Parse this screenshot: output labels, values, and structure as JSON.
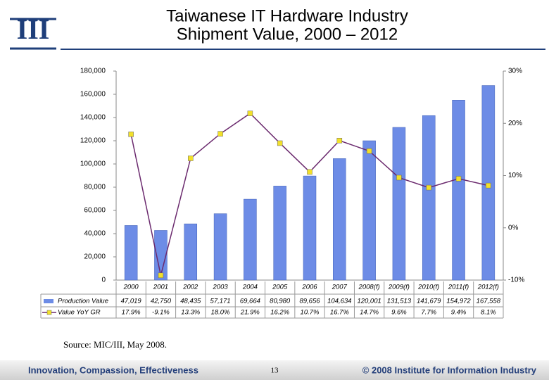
{
  "logo": "III",
  "chart_data": {
    "type": "bar-line",
    "title": [
      "Taiwanese IT Hardware Industry",
      "Shipment Value, 2000 – 2012"
    ],
    "categories": [
      "2000",
      "2001",
      "2002",
      "2003",
      "2004",
      "2005",
      "2006",
      "2007",
      "2008(f)",
      "2009(f)",
      "2010(f)",
      "2011(f)",
      "2012(f)"
    ],
    "series": [
      {
        "name": "Production Value",
        "type": "bar",
        "color": "#6d8ce6",
        "values": [
          47019,
          42750,
          48435,
          57171,
          69664,
          80980,
          89656,
          104634,
          120001,
          131513,
          141679,
          154972,
          167558
        ],
        "value_labels": [
          "47,019",
          "42,750",
          "48,435",
          "57,171",
          "69,664",
          "80,980",
          "89,656",
          "104,634",
          "120,001",
          "131,513",
          "141,679",
          "154,972",
          "167,558"
        ]
      },
      {
        "name": "Value YoY GR",
        "type": "line",
        "axis": "y2",
        "color": "#6b2a6e",
        "marker_color": "#f2e02a",
        "values": [
          17.9,
          -9.1,
          13.3,
          18.0,
          21.9,
          16.2,
          10.7,
          16.7,
          14.7,
          9.6,
          7.7,
          9.4,
          8.1
        ],
        "value_labels": [
          "17.9%",
          "-9.1%",
          "13.3%",
          "18.0%",
          "21.9%",
          "16.2%",
          "10.7%",
          "16.7%",
          "14.7%",
          "9.6%",
          "7.7%",
          "9.4%",
          "8.1%"
        ]
      }
    ],
    "ylim": [
      0,
      180000
    ],
    "yticks": [
      0,
      {
        "value": 20000,
        "label": "20,000"
      },
      {
        "value": 40000,
        "label": "40,000"
      },
      {
        "value": 60000,
        "label": "60,000"
      },
      {
        "value": 80000,
        "label": "80,000"
      },
      {
        "value": 100000,
        "label": "100,000"
      },
      {
        "value": 120000,
        "label": "120,000"
      },
      {
        "value": 140000,
        "label": "140,000"
      },
      {
        "value": 160000,
        "label": "160,000"
      },
      {
        "value": 180000,
        "label": "180,000"
      }
    ],
    "y2lim": [
      -10,
      30
    ],
    "y2ticks": [
      {
        "value": -10,
        "label": "-10%"
      },
      {
        "value": 0,
        "label": "0%"
      },
      {
        "value": 10,
        "label": "10%"
      },
      {
        "value": 20,
        "label": "20%"
      },
      {
        "value": 30,
        "label": "30%"
      }
    ],
    "grid": false,
    "source": "Source: MIC/III, May 2008."
  },
  "footer": {
    "left": "Innovation, Compassion, Effectiveness",
    "page": "13",
    "right": "© 2008 Institute for Information Industry"
  }
}
